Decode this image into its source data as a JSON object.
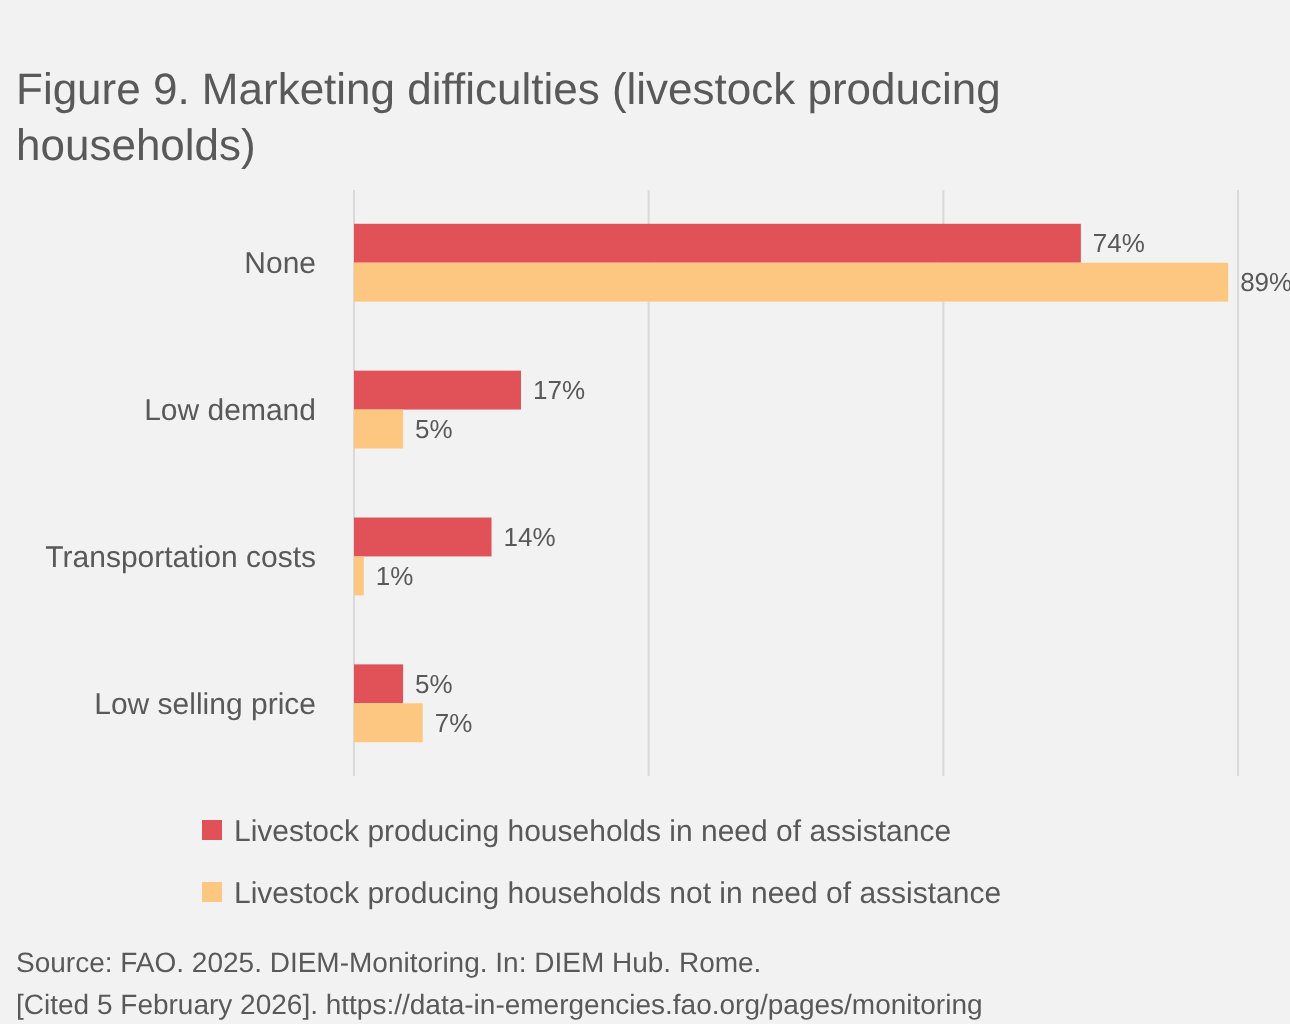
{
  "chart_data": {
    "type": "bar",
    "orientation": "horizontal",
    "title": "Figure 9. Marketing difficulties (livestock producing households)",
    "categories": [
      "None",
      "Low demand",
      "Transportation costs",
      "Low selling price"
    ],
    "series": [
      {
        "name": "Livestock producing households in need of assistance",
        "color": "#e05258",
        "values": [
          74,
          17,
          14,
          5
        ],
        "value_labels": [
          "74%",
          "17%",
          "14%",
          "5%"
        ]
      },
      {
        "name": "Livestock producing households not in need of assistance",
        "color": "#fdc781",
        "values": [
          89,
          5,
          1,
          7
        ],
        "value_labels": [
          "89%",
          "5%",
          "1%",
          "7%"
        ]
      }
    ],
    "xlim": [
      0,
      90
    ],
    "xticks": [
      {
        "value": 0,
        "label": null
      },
      {
        "value": 30,
        "label": null
      },
      {
        "value": 60,
        "label": null
      },
      {
        "value": 90,
        "label": null
      }
    ],
    "tick_labels": "y",
    "grid": "x",
    "legend": "bottom",
    "annotations": [
      "Source: FAO. 2025. DIEM-Monitoring. In: DIEM Hub. Rome.",
      "[Cited 5 February 2026]. https://data-in-emergencies.fao.org/pages/monitoring"
    ]
  }
}
